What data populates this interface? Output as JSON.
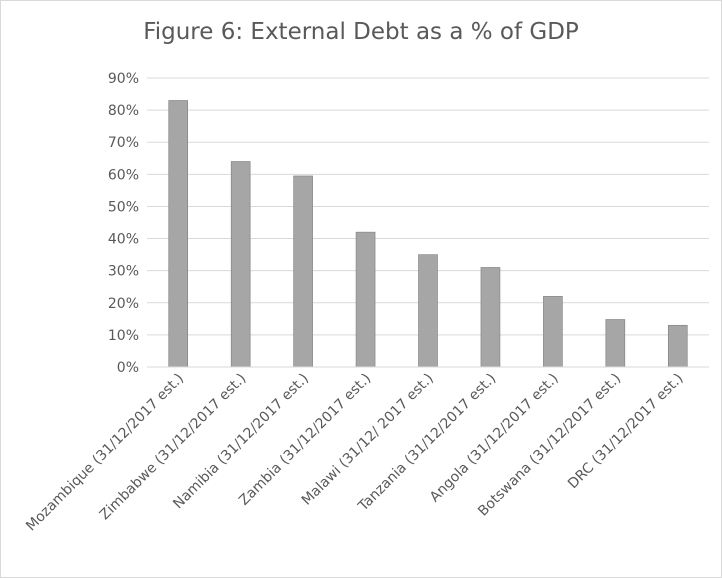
{
  "chart_data": {
    "type": "bar",
    "title": "Figure 6: External Debt as a % of GDP",
    "xlabel": "",
    "ylabel": "",
    "categories": [
      "Mozambique (31/12/2017 est.)",
      "Zimbabwe (31/12/2017 est.)",
      "Namibia (31/12/2017 est.)",
      "Zambia (31/12/2017 est.)",
      "Malawi (31/12/ 2017 est.)",
      "Tanzania (31/12/2017 est.)",
      "Angola (31/12/2017 est.)",
      "Botswana (31/12/2017 est.)",
      "DRC (31/12/2017 est.)"
    ],
    "values": [
      83,
      64,
      59.5,
      42,
      35,
      31,
      22,
      14.8,
      13
    ],
    "ylim": [
      0,
      90
    ],
    "yticks": [
      "0%",
      "10%",
      "20%",
      "30%",
      "40%",
      "50%",
      "60%",
      "70%",
      "80%",
      "90%"
    ],
    "grid": true,
    "legend": "none",
    "bar_color": "#a6a6a6",
    "bar_edge_color": "#7f7f7f",
    "grid_color": "#d9d9d9"
  }
}
